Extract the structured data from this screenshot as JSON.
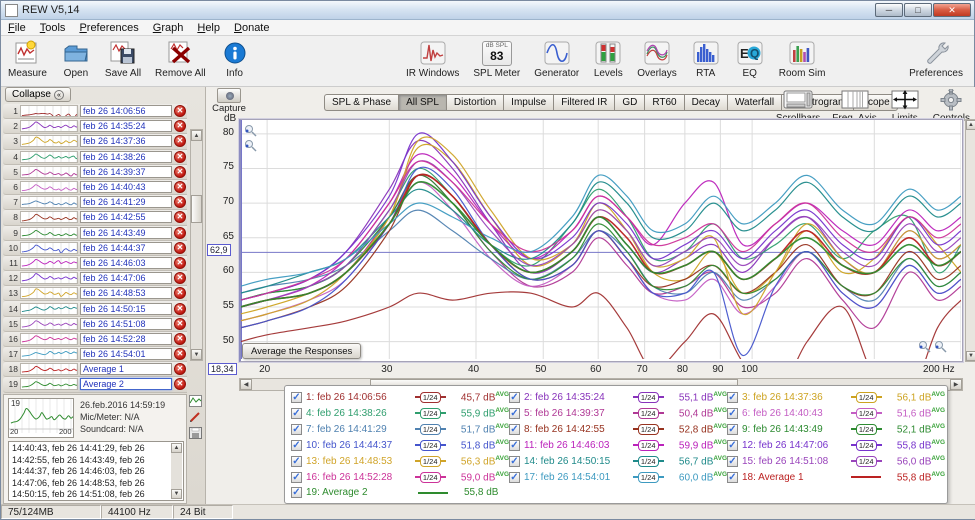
{
  "window": {
    "title": "REW V5,14"
  },
  "menu": {
    "items": [
      "File",
      "Tools",
      "Preferences",
      "Graph",
      "Help",
      "Donate"
    ]
  },
  "toolbar": {
    "left": [
      {
        "label": "Measure",
        "icon": "measure-icon"
      },
      {
        "label": "Open",
        "icon": "open-folder-icon"
      },
      {
        "label": "Save All",
        "icon": "save-all-icon"
      },
      {
        "label": "Remove All",
        "icon": "remove-all-icon"
      },
      {
        "label": "Info",
        "icon": "info-icon"
      }
    ],
    "center": [
      {
        "label": "IR Windows",
        "icon": "ir-windows-icon"
      },
      {
        "label": "SPL Meter",
        "icon": "spl-meter-icon",
        "meter_caption": "dB SPL",
        "meter_value": "83"
      },
      {
        "label": "Generator",
        "icon": "generator-icon"
      },
      {
        "label": "Levels",
        "icon": "levels-icon"
      },
      {
        "label": "Overlays",
        "icon": "overlays-icon"
      },
      {
        "label": "RTA",
        "icon": "rta-icon"
      },
      {
        "label": "EQ",
        "icon": "eq-icon"
      },
      {
        "label": "Room Sim",
        "icon": "room-sim-icon"
      }
    ],
    "right": [
      {
        "label": "Preferences",
        "icon": "wrench-icon"
      }
    ]
  },
  "sidebar": {
    "collapse_label": "Collapse",
    "selected_detail": {
      "num": "19",
      "date": "26.feb.2016 14:59:19",
      "mic": "Mic/Meter: N/A",
      "soundcard": "Soundcard: N/A",
      "thumb_x_min": "20",
      "thumb_x_max": "200",
      "notes": "14:40:43, feb 26 14:41:29, feb 26 14:42:55, feb 26 14:43:49, feb 26 14:44:37, feb 26 14:46:03, feb 26 14:47:06, feb 26 14:48:53, feb 26 14:50:15, feb 26 14:51:08, feb 26 14:52:28, feb 26 14:54:01, Average 1"
    }
  },
  "graph": {
    "capture_label": "Capture",
    "tabs": [
      "SPL & Phase",
      "All SPL",
      "Distortion",
      "Impulse",
      "Filtered IR",
      "GD",
      "RT60",
      "Decay",
      "Waterfall",
      "Spectrogram",
      "Scope"
    ],
    "active_tab": "All SPL",
    "view_buttons": [
      {
        "label": "Scrollbars",
        "icon": "scrollbars-icon"
      },
      {
        "label": "Freq. Axis",
        "icon": "freq-axis-icon"
      },
      {
        "label": "Limits",
        "icon": "limits-icon"
      },
      {
        "label": "Controls",
        "icon": "gear-icon"
      }
    ],
    "average_button": "Average the Responses",
    "cursor_freq_label": "18,34",
    "cursor_db_label": "62,9"
  },
  "chart_data": {
    "type": "line",
    "title": "All SPL",
    "xlabel": "Hz",
    "ylabel": "dB",
    "x_scale": "log",
    "xlim": [
      18.34,
      200
    ],
    "ylim": [
      47.5,
      82
    ],
    "x_ticks": [
      20,
      30,
      40,
      50,
      60,
      70,
      80,
      90,
      100,
      200
    ],
    "x_tick_labels": [
      "20",
      "30",
      "40",
      "50",
      "60",
      "70",
      "80",
      "90",
      "100",
      "200 Hz"
    ],
    "x_minor_grid": [
      150
    ],
    "y_ticks": [
      50,
      55,
      60,
      65,
      70,
      75,
      80
    ],
    "cursor": {
      "x": 18.34,
      "y": 62.9
    },
    "legend_position": "bottom",
    "x": [
      18.3,
      20,
      23,
      26,
      30,
      33,
      37,
      42,
      48,
      55,
      60,
      66,
      72,
      80,
      88,
      97,
      108,
      120,
      135,
      150,
      168,
      185,
      200
    ],
    "series": [
      {
        "num": 1,
        "name": "feb 26 14:06:56",
        "color": "#a03030",
        "badge": "1/24",
        "avg_db": "45,7 dB",
        "avg_sup": "AVG",
        "values": [
          50,
          51,
          52,
          53,
          55,
          57,
          56,
          57,
          57,
          55,
          57,
          52,
          46,
          50,
          54,
          47,
          42,
          50,
          55,
          45,
          42,
          52,
          56
        ]
      },
      {
        "num": 2,
        "name": "feb 26 14:35:24",
        "color": "#8833bb",
        "badge": "1/24",
        "avg_db": "55,1 dB",
        "avg_sup": "AVG",
        "values": [
          56,
          57,
          59,
          63,
          72,
          79,
          75,
          67,
          60,
          63,
          68,
          64,
          60,
          62,
          64,
          60,
          65,
          68,
          62,
          60,
          66,
          62,
          64
        ]
      },
      {
        "num": 3,
        "name": "feb 26 14:37:36",
        "color": "#cda321",
        "badge": "1/24",
        "avg_db": "56,1 dB",
        "avg_sup": "AVG",
        "values": [
          54,
          55,
          57,
          60,
          68,
          78,
          76,
          68,
          61,
          64,
          70,
          66,
          60,
          59,
          63,
          57,
          60,
          66,
          60,
          62,
          68,
          64,
          60
        ]
      },
      {
        "num": 4,
        "name": "feb 26 14:38:26",
        "color": "#2f9e6e",
        "badge": "1/24",
        "avg_db": "55,9 dB",
        "avg_sup": "AVG",
        "values": [
          56,
          57,
          58,
          61,
          69,
          75,
          71,
          64,
          61,
          67,
          72,
          68,
          62,
          63,
          67,
          62,
          64,
          67,
          62,
          66,
          68,
          60,
          64
        ]
      },
      {
        "num": 5,
        "name": "feb 26 14:39:37",
        "color": "#b03895",
        "badge": "1/24",
        "avg_db": "50,4 dB",
        "avg_sup": "AVG",
        "values": [
          55,
          56,
          57,
          60,
          68,
          74,
          70,
          63,
          58,
          60,
          65,
          61,
          57,
          58,
          60,
          55,
          57,
          62,
          56,
          52,
          60,
          56,
          58
        ]
      },
      {
        "num": 6,
        "name": "feb 26 14:40:43",
        "color": "#c45ec4",
        "badge": "1/24",
        "avg_db": "51,6 dB",
        "avg_sup": "AVG",
        "values": [
          53,
          54,
          56,
          59,
          67,
          73,
          69,
          62,
          58,
          61,
          66,
          62,
          57,
          56,
          59,
          54,
          58,
          63,
          57,
          55,
          61,
          57,
          59
        ]
      },
      {
        "num": 7,
        "name": "feb 26 14:41:29",
        "color": "#4f81b0",
        "badge": "1/24",
        "avg_db": "51,7 dB",
        "avg_sup": "AVG",
        "values": [
          57,
          58,
          59,
          61,
          66,
          69,
          66,
          62,
          59,
          62,
          66,
          63,
          58,
          57,
          60,
          56,
          59,
          63,
          58,
          56,
          62,
          58,
          60
        ]
      },
      {
        "num": 8,
        "name": "feb 26 14:42:55",
        "color": "#97321f",
        "badge": "1/24",
        "avg_db": "52,8 dB",
        "avg_sup": "AVG",
        "values": [
          52,
          53,
          55,
          58,
          66,
          74,
          71,
          64,
          59,
          61,
          66,
          62,
          58,
          59,
          61,
          57,
          60,
          64,
          58,
          57,
          63,
          59,
          61
        ]
      },
      {
        "num": 9,
        "name": "feb 26 14:43:49",
        "color": "#2e8b32",
        "badge": "1/24",
        "avg_db": "52,1 dB",
        "avg_sup": "AVG",
        "values": [
          56,
          57,
          58,
          61,
          68,
          74,
          70,
          63,
          59,
          62,
          67,
          63,
          58,
          58,
          61,
          57,
          59,
          63,
          58,
          57,
          62,
          58,
          60
        ]
      },
      {
        "num": 10,
        "name": "feb 26 14:44:37",
        "color": "#4455cc",
        "badge": "1/24",
        "avg_db": "51,8 dB",
        "avg_sup": "AVG",
        "values": [
          52,
          53,
          55,
          59,
          67,
          75,
          72,
          64,
          59,
          61,
          66,
          62,
          57,
          57,
          60,
          48,
          58,
          63,
          57,
          55,
          61,
          57,
          59
        ]
      },
      {
        "num": 11,
        "name": "feb 26 14:46:03",
        "color": "#bb22bb",
        "badge": "1/24",
        "avg_db": "59,9 dB",
        "avg_sup": "AVG",
        "values": [
          55,
          56,
          58,
          62,
          70,
          77,
          74,
          67,
          62,
          66,
          71,
          68,
          64,
          70,
          73,
          64,
          67,
          70,
          66,
          64,
          69,
          66,
          68
        ]
      },
      {
        "num": 12,
        "name": "feb 26 14:47:06",
        "color": "#7733cc",
        "badge": "1/24",
        "avg_db": "55,8 dB",
        "avg_sup": "AVG",
        "values": [
          56,
          57,
          59,
          63,
          71,
          80,
          76,
          68,
          62,
          65,
          70,
          67,
          62,
          64,
          66,
          62,
          66,
          69,
          64,
          62,
          68,
          64,
          66
        ]
      },
      {
        "num": 13,
        "name": "feb 26 14:48:53",
        "color": "#d0a429",
        "badge": "1/24",
        "avg_db": "56,3 dB",
        "avg_sup": "AVG",
        "values": [
          53,
          54,
          56,
          60,
          68,
          79,
          77,
          69,
          62,
          64,
          69,
          66,
          61,
          62,
          65,
          54,
          60,
          67,
          62,
          60,
          66,
          62,
          64
        ]
      },
      {
        "num": 14,
        "name": "feb 26 14:50:15",
        "color": "#1f8a8a",
        "badge": "1/24",
        "avg_db": "56,7 dB",
        "avg_sup": "AVG",
        "values": [
          57,
          58,
          60,
          62,
          68,
          72,
          69,
          64,
          62,
          67,
          73,
          70,
          65,
          66,
          70,
          66,
          69,
          73,
          68,
          66,
          71,
          68,
          70
        ]
      },
      {
        "num": 15,
        "name": "feb 26 14:51:08",
        "color": "#9944bb",
        "badge": "1/24",
        "avg_db": "56,0 dB",
        "avg_sup": "AVG",
        "values": [
          55,
          56,
          58,
          61,
          69,
          76,
          73,
          66,
          61,
          64,
          69,
          66,
          61,
          63,
          65,
          61,
          65,
          68,
          63,
          61,
          67,
          63,
          65
        ]
      },
      {
        "num": 16,
        "name": "feb 26 14:52:28",
        "color": "#cc3399",
        "badge": "1/24",
        "avg_db": "59,0 dB",
        "avg_sup": "AVG",
        "values": [
          56,
          57,
          59,
          62,
          70,
          76,
          73,
          67,
          63,
          66,
          71,
          68,
          64,
          65,
          67,
          63,
          67,
          70,
          65,
          63,
          68,
          65,
          67
        ]
      },
      {
        "num": 17,
        "name": "feb 26 14:54:01",
        "color": "#3d9ac0",
        "badge": "1/24",
        "avg_db": "60,0 dB",
        "avg_sup": "AVG",
        "values": [
          58,
          59,
          60,
          62,
          67,
          70,
          68,
          65,
          63,
          68,
          74,
          71,
          66,
          67,
          71,
          67,
          70,
          74,
          69,
          67,
          72,
          69,
          71
        ]
      },
      {
        "num": 18,
        "name": "Average 1",
        "color": "#bb2222",
        "badge": "line",
        "avg_db": "55,8 dB",
        "avg_sup": "AVG",
        "values": [
          55,
          56,
          57,
          60,
          67,
          74,
          71,
          64,
          60,
          63,
          68,
          65,
          60,
          61,
          63,
          59,
          62,
          66,
          61,
          60,
          65,
          61,
          63
        ]
      },
      {
        "num": 19,
        "name": "Average 2",
        "color": "#2e8b2e",
        "badge": "line",
        "avg_db": "55,8 dB",
        "avg_sup": "",
        "values": [
          55,
          56,
          57,
          60,
          67,
          73,
          70,
          64,
          60,
          63,
          68,
          64,
          60,
          61,
          63,
          59,
          62,
          65,
          61,
          60,
          64,
          61,
          63
        ],
        "selected": true
      }
    ]
  },
  "status_bar": {
    "cells": [
      "75/124MB",
      "44100 Hz",
      "24 Bit"
    ]
  }
}
